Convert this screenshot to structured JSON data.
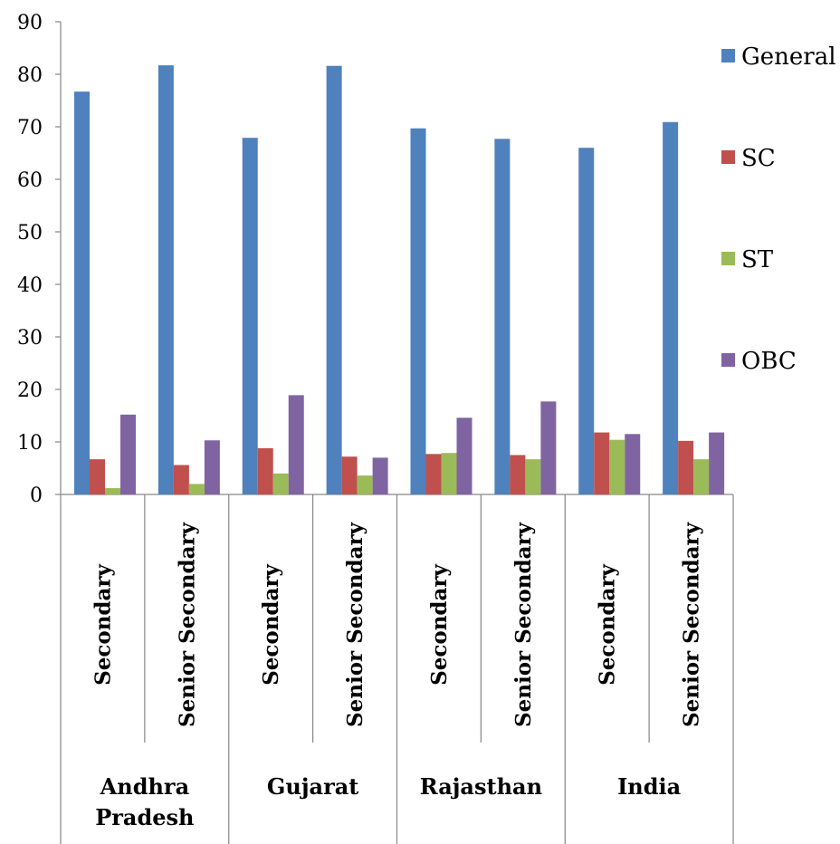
{
  "chart_data": {
    "type": "bar",
    "groups": [
      {
        "label_lines": [
          "Andhra",
          "Pradesh"
        ],
        "categories": [
          "Secondary",
          "Senior Secondary"
        ]
      },
      {
        "label_lines": [
          "Gujarat"
        ],
        "categories": [
          "Secondary",
          "Senior Secondary"
        ]
      },
      {
        "label_lines": [
          "Rajasthan"
        ],
        "categories": [
          "Secondary",
          "Senior Secondary"
        ]
      },
      {
        "label_lines": [
          "India"
        ],
        "categories": [
          "Secondary",
          "Senior Secondary"
        ]
      }
    ],
    "series": [
      {
        "name": "General",
        "color": "#4F81BD",
        "values": [
          76.7,
          81.7,
          67.9,
          81.6,
          69.7,
          67.7,
          66.0,
          70.9
        ]
      },
      {
        "name": "SC",
        "color": "#C0504D",
        "values": [
          6.7,
          5.6,
          8.8,
          7.2,
          7.7,
          7.5,
          11.8,
          10.2
        ]
      },
      {
        "name": "ST",
        "color": "#9BBB59",
        "values": [
          1.2,
          2.0,
          4.0,
          3.6,
          7.9,
          6.7,
          10.4,
          6.7
        ]
      },
      {
        "name": "OBC",
        "color": "#8064A2",
        "values": [
          15.2,
          10.3,
          18.9,
          7.0,
          14.6,
          17.7,
          11.5,
          11.8
        ]
      }
    ],
    "ylim": [
      0,
      90
    ],
    "yticks": [
      0,
      10,
      20,
      30,
      40,
      50,
      60,
      70,
      80,
      90
    ],
    "grid": false,
    "legend": "right"
  }
}
